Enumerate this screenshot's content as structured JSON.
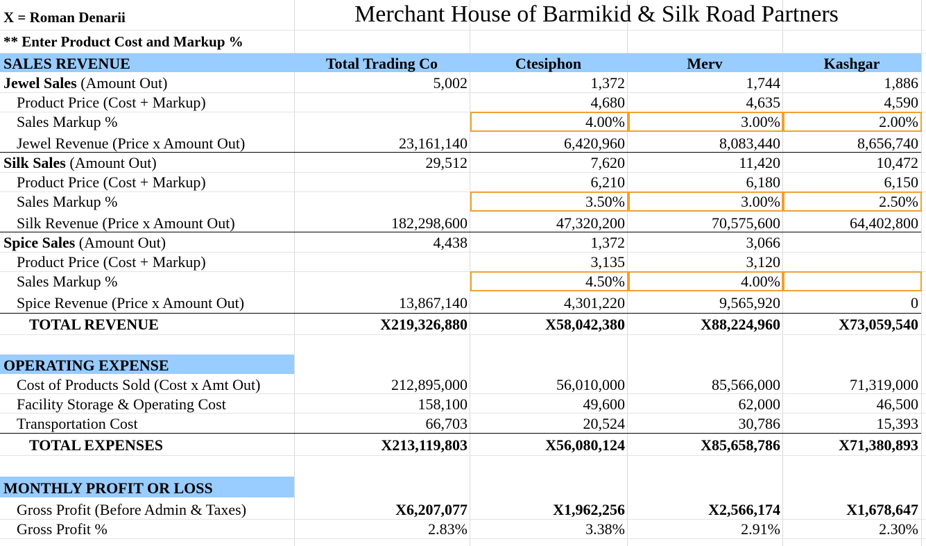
{
  "legend": {
    "currency_note": "X = Roman Denarii",
    "instruction": "** Enter Product Cost and Markup %"
  },
  "title": "Merchant House of Barmikid & Silk Road Partners",
  "columns": [
    "Total Trading Co",
    "Ctesiphon",
    "Merv",
    "Kashgar"
  ],
  "sections": {
    "sales_revenue": "SALES REVENUE",
    "operating_expense": "OPERATING EXPENSE",
    "monthly_profit": "MONTHLY PROFIT OR LOSS"
  },
  "sales": {
    "jewel": {
      "name_bold": "Jewel Sales",
      "name_rest": " (Amount Out)",
      "amount": [
        "5,002",
        "1,372",
        "1,744",
        "1,886"
      ],
      "price_label": "Product Price (Cost + Markup)",
      "price": [
        "",
        "4,680",
        "4,635",
        "4,590"
      ],
      "markup_label": "Sales Markup %",
      "markup": [
        "",
        "4.00%",
        "3.00%",
        "2.00%"
      ],
      "revenue_label": "Jewel Revenue (Price x Amount Out)",
      "revenue": [
        "23,161,140",
        "6,420,960",
        "8,083,440",
        "8,656,740"
      ]
    },
    "silk": {
      "name_bold": "Silk Sales",
      "name_rest": " (Amount Out)",
      "amount": [
        "29,512",
        "7,620",
        "11,420",
        "10,472"
      ],
      "price_label": "Product Price (Cost + Markup)",
      "price": [
        "",
        "6,210",
        "6,180",
        "6,150"
      ],
      "markup_label": "Sales Markup %",
      "markup": [
        "",
        "3.50%",
        "3.00%",
        "2.50%"
      ],
      "revenue_label": "Silk Revenue (Price x Amount Out)",
      "revenue": [
        "182,298,600",
        "47,320,200",
        "70,575,600",
        "64,402,800"
      ]
    },
    "spice": {
      "name_bold": "Spice Sales",
      "name_rest": " (Amount Out)",
      "amount": [
        "4,438",
        "1,372",
        "3,066",
        ""
      ],
      "price_label": "Product Price (Cost + Markup)",
      "price": [
        "",
        "3,135",
        "3,120",
        ""
      ],
      "markup_label": "Sales Markup %",
      "markup": [
        "",
        "4.50%",
        "4.00%",
        ""
      ],
      "revenue_label": "Spice Revenue (Price x Amount Out)",
      "revenue": [
        "13,867,140",
        "4,301,220",
        "9,565,920",
        "0"
      ]
    },
    "total_label": "TOTAL REVENUE",
    "total": [
      "X219,326,880",
      "X58,042,380",
      "X88,224,960",
      "X73,059,540"
    ]
  },
  "expenses": {
    "cogs_label": "Cost of Products Sold (Cost x Amt Out)",
    "cogs": [
      "212,895,000",
      "56,010,000",
      "85,566,000",
      "71,319,000"
    ],
    "facility_label": "Facility Storage & Operating Cost",
    "facility": [
      "158,100",
      "49,600",
      "62,000",
      "46,500"
    ],
    "transport_label": "Transportation Cost",
    "transport": [
      "66,703",
      "20,524",
      "30,786",
      "15,393"
    ],
    "total_label": "TOTAL EXPENSES",
    "total": [
      "X213,119,803",
      "X56,080,124",
      "X85,658,786",
      "X71,380,893"
    ]
  },
  "profit": {
    "gross_label": "Gross Profit (Before Admin & Taxes)",
    "gross": [
      "X6,207,077",
      "X1,962,256",
      "X2,566,174",
      "X1,678,647"
    ],
    "pct_label": "Gross Profit %",
    "pct": [
      "2.83%",
      "3.38%",
      "2.91%",
      "2.30%"
    ]
  },
  "colors": {
    "section_band": "#99ccff",
    "input_border": "#f0a030",
    "gridline": "#e3e3e3"
  }
}
